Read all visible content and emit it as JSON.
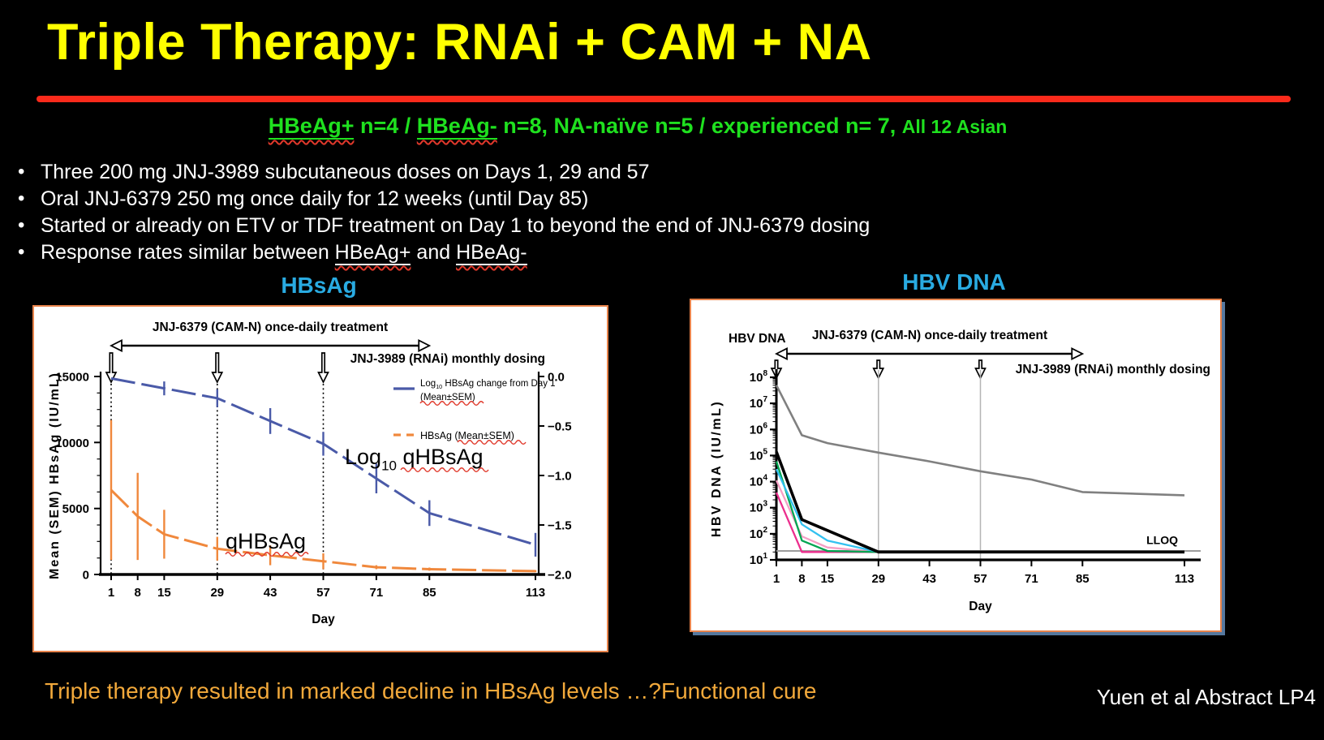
{
  "slide": {
    "title": "Triple Therapy: RNAi + CAM + NA"
  },
  "subtitle": {
    "hbeag_pos": "HBeAg+",
    "seg2": " n=4 / ",
    "hbeag_neg": "HBeAg-",
    "seg4": " n=8, NA-naïve n=5 / experienced n= 7, ",
    "seg5": "All 12 Asian"
  },
  "bullets": [
    {
      "text": "Three 200 mg JNJ-3989 subcutaneous doses on Days 1, 29 and 57"
    },
    {
      "text": "Oral JNJ-6379 250 mg once daily for 12 weeks (until Day 85)"
    },
    {
      "text": "Started or already on ETV or TDF treatment on Day 1 to beyond the end of JNJ-6379 dosing"
    },
    {
      "pre": "Response rates similar between ",
      "u1": "HBeAg+",
      "mid": " and ",
      "u2": "HBeAg-"
    }
  ],
  "footer": {
    "conclusion": "Triple therapy resulted in marked decline in HBsAg levels …?Functional cure",
    "citation": "Yuen et al Abstract LP4"
  },
  "colors": {
    "title": "#FFFF00",
    "divider": "#FA2A1B",
    "subtitle": "#1FE11F",
    "body": "#FFFFFF",
    "chart_title": "#29ABE2",
    "panel_border": "#E8834B",
    "conclusion": "#F2A93B",
    "wavy": "#E0392B"
  },
  "chart_data": [
    {
      "id": "hbsag",
      "type": "line",
      "title": "HBsAg",
      "header": {
        "treatment": "JNJ-6379 (CAM-N) once-daily treatment",
        "dosing": "JNJ-3989 (RNAi) monthly dosing"
      },
      "dose_days": [
        1,
        29,
        57
      ],
      "treatment_span": [
        1,
        85
      ],
      "xlabel": "Day",
      "x_ticks": [
        1,
        8,
        15,
        29,
        43,
        57,
        71,
        85,
        113
      ],
      "y_left": {
        "label": "Mean (SEM) HBsAg (IU/mL)",
        "min": 0,
        "max": 15000,
        "ticks": [
          0,
          5000,
          10000,
          15000
        ],
        "minor_step": 1250
      },
      "y_right": {
        "values": [
          0,
          -0.5,
          -1,
          -1.5,
          -2
        ],
        "labels": [
          "0.0",
          "−0.5",
          "−1.0",
          "−1.5",
          "−2.0"
        ],
        "min": -2,
        "max": 0
      },
      "legend": [
        {
          "swatch": "blue-solid-line",
          "line1": {
            "pre": "Log",
            "sub": "10",
            "post": " HBsAg change from Day 1"
          },
          "line2": "(Mean±SEM)"
        },
        {
          "swatch": "orange-dashed-line",
          "line1": "HBsAg (Mean±SEM)"
        }
      ],
      "annotations": [
        {
          "name": "log10-qhbsag",
          "pre": "Log",
          "sub": "10",
          "post": " qHBsAg"
        },
        {
          "name": "qhbsag",
          "text": "qHBsAg"
        }
      ],
      "series": [
        {
          "name": "log10-hbsag-change",
          "axis": "right",
          "color": "#4A5AA8",
          "width": 3,
          "dash": [
            30,
            8
          ],
          "x": [
            1,
            8,
            15,
            29,
            43,
            57,
            71,
            85,
            113
          ],
          "y": [
            -0.02,
            -0.07,
            -0.12,
            -0.22,
            -0.45,
            -0.68,
            -1.03,
            -1.38,
            -1.7
          ],
          "err": [
            0,
            0,
            0.07,
            0.09,
            0.13,
            0.12,
            0.15,
            0.13,
            0.12
          ]
        },
        {
          "name": "qhbsag-mean",
          "axis": "left",
          "color": "#F0883C",
          "width": 3,
          "dash": [
            30,
            7
          ],
          "x": [
            1,
            8,
            15,
            29,
            43,
            57,
            71,
            85,
            113
          ],
          "y": [
            6400,
            4400,
            3050,
            1950,
            1450,
            1000,
            550,
            400,
            250
          ],
          "err": [
            5300,
            3300,
            1850,
            900,
            750,
            600,
            150,
            120,
            80
          ]
        }
      ]
    },
    {
      "id": "hbvdna",
      "type": "line",
      "y_scale": "log",
      "title": "HBV DNA",
      "inner_label": "HBV DNA",
      "header": {
        "treatment": "JNJ-6379 (CAM-N) once-daily treatment",
        "dosing": "JNJ-3989 (RNAi) monthly dosing"
      },
      "dose_days": [
        1,
        29,
        57
      ],
      "treatment_span": [
        1,
        85
      ],
      "xlabel": "Day",
      "x_ticks": [
        1,
        8,
        15,
        29,
        43,
        57,
        71,
        85,
        113
      ],
      "y": {
        "label": "HBV DNA (IU/mL)",
        "log_min_exp": 1,
        "log_max_exp": 8,
        "tick_exponents": [
          8,
          7,
          6,
          5,
          4,
          3,
          2,
          1
        ]
      },
      "lloq": {
        "label": "LLOQ",
        "value": 20
      },
      "series": [
        {
          "name": "patient-gray",
          "color": "#808080",
          "width": 2.6,
          "x": [
            1,
            8,
            15,
            29,
            43,
            57,
            71,
            85,
            113
          ],
          "y": [
            50000000,
            600000,
            300000,
            130000,
            60000,
            25000,
            12000,
            4000,
            3000
          ]
        },
        {
          "name": "patient-magenta",
          "color": "#EC2E8D",
          "width": 2.3,
          "x": [
            1,
            8,
            15,
            29,
            113
          ],
          "y": [
            3800,
            20,
            20,
            20,
            20
          ]
        },
        {
          "name": "patient-pink",
          "color": "#F59EC4",
          "width": 2.3,
          "x": [
            1,
            8,
            15,
            29,
            113
          ],
          "y": [
            11000,
            80,
            30,
            20,
            20
          ]
        },
        {
          "name": "patient-green",
          "color": "#00A651",
          "width": 2.3,
          "x": [
            1,
            8,
            15,
            29,
            113
          ],
          "y": [
            60000,
            55,
            22,
            20,
            20
          ]
        },
        {
          "name": "patient-cyan",
          "color": "#33C1F0",
          "width": 2.3,
          "x": [
            1,
            8,
            15,
            29,
            113
          ],
          "y": [
            30000,
            230,
            55,
            20,
            20
          ]
        },
        {
          "name": "patients-pooled-black",
          "color": "#000000",
          "width": 3.6,
          "x": [
            1,
            8,
            29,
            113
          ],
          "y": [
            140000,
            350,
            20,
            20
          ]
        }
      ]
    }
  ]
}
